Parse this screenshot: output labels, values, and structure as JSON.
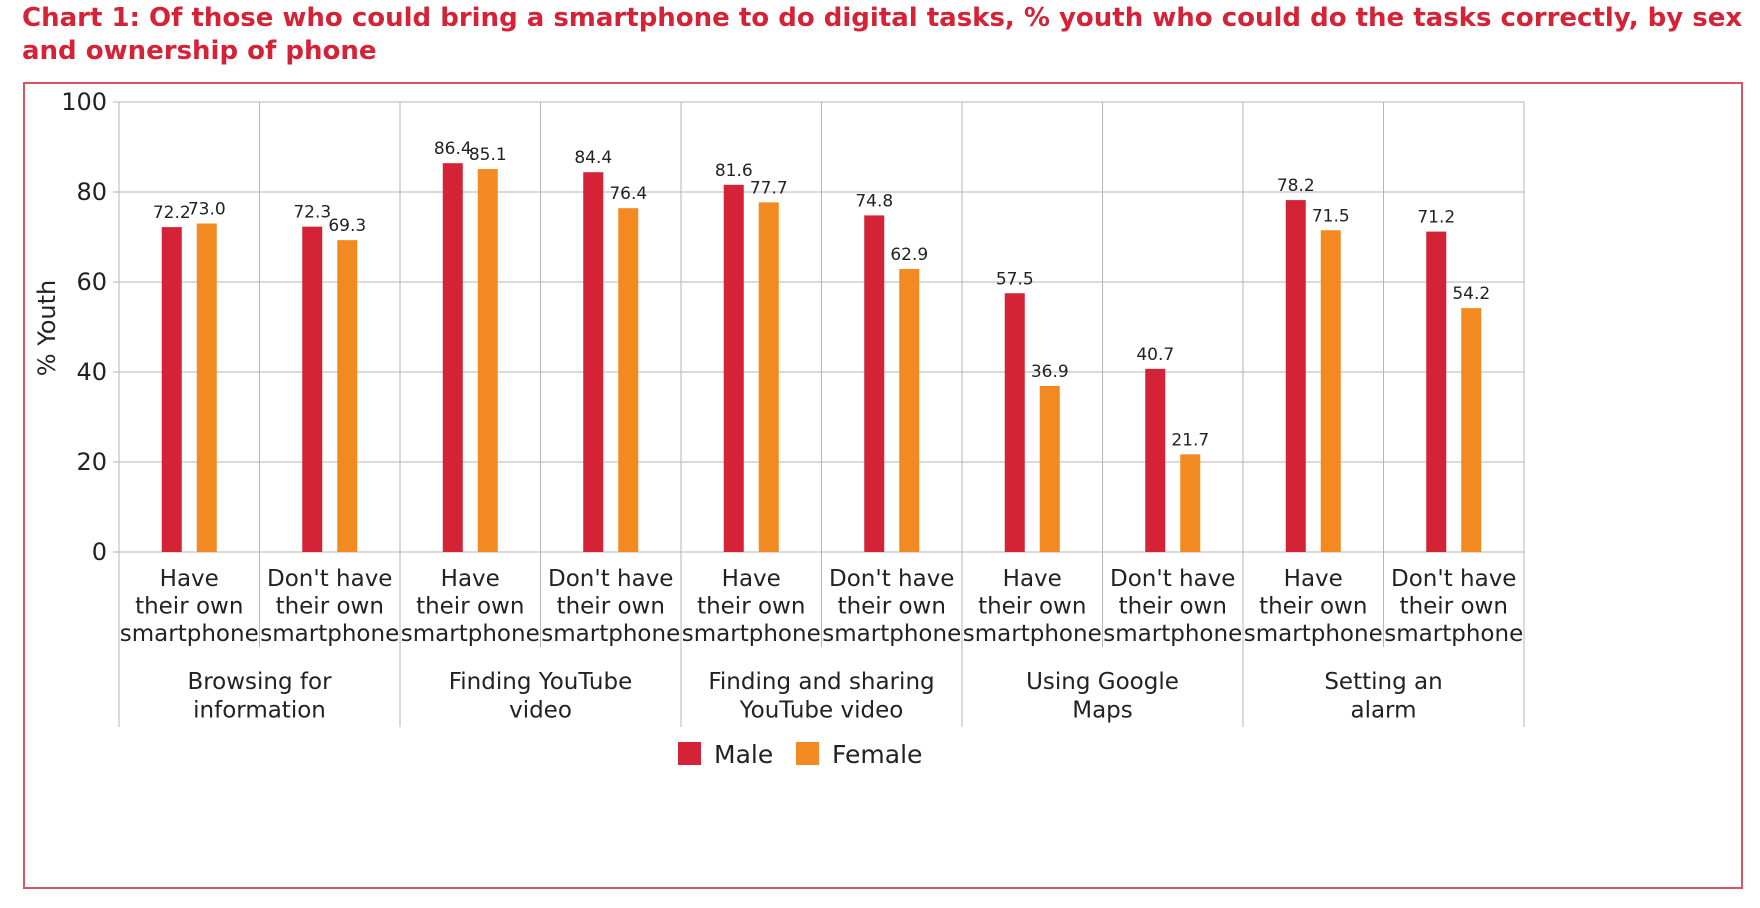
{
  "chart_data": {
    "type": "bar",
    "title": "Chart 1: Of those who could bring a smartphone to do digital tasks, % youth who could do the tasks correctly, by sex and ownership of phone",
    "ylabel": "% Youth",
    "ylim": [
      0,
      100
    ],
    "yticks": [
      "0",
      "20",
      "40",
      "60",
      "80",
      "100"
    ],
    "grid": true,
    "legend_position": "bottom-center",
    "groups": [
      {
        "label": "Browsing for information",
        "lines": [
          "Browsing for",
          "information"
        ]
      },
      {
        "label": "Finding YouTube video",
        "lines": [
          "Finding YouTube",
          "video"
        ]
      },
      {
        "label": "Finding and sharing YouTube video",
        "lines": [
          "Finding and sharing",
          "YouTube video"
        ]
      },
      {
        "label": "Using Google Maps",
        "lines": [
          "Using Google",
          "Maps"
        ]
      },
      {
        "label": "Setting an alarm",
        "lines": [
          "Setting an",
          "alarm"
        ]
      }
    ],
    "subcategory_lines": {
      "have": [
        "Have",
        "their own",
        "smartphone"
      ],
      "dont": [
        "Don't have",
        "their own",
        "smartphone"
      ]
    },
    "categories_pattern": [
      "have",
      "dont",
      "have",
      "dont",
      "have",
      "dont",
      "have",
      "dont",
      "have",
      "dont"
    ],
    "series": [
      {
        "name": "Male",
        "color": "#d42236",
        "values": [
          72.2,
          72.3,
          86.4,
          84.4,
          81.6,
          74.8,
          57.5,
          40.7,
          78.2,
          71.2
        ]
      },
      {
        "name": "Female",
        "color": "#f28a21",
        "values": [
          73.0,
          69.3,
          85.1,
          76.4,
          77.7,
          62.9,
          36.9,
          21.7,
          71.5,
          54.2
        ]
      }
    ],
    "value_labels": {
      "Male": [
        "72.2",
        "72.3",
        "86.4",
        "84.4",
        "81.6",
        "74.8",
        "57.5",
        "40.7",
        "78.2",
        "71.2"
      ],
      "Female": [
        "73.0",
        "69.3",
        "85.1",
        "76.4",
        "77.7",
        "62.9",
        "36.9",
        "21.7",
        "71.5",
        "54.2"
      ]
    }
  }
}
